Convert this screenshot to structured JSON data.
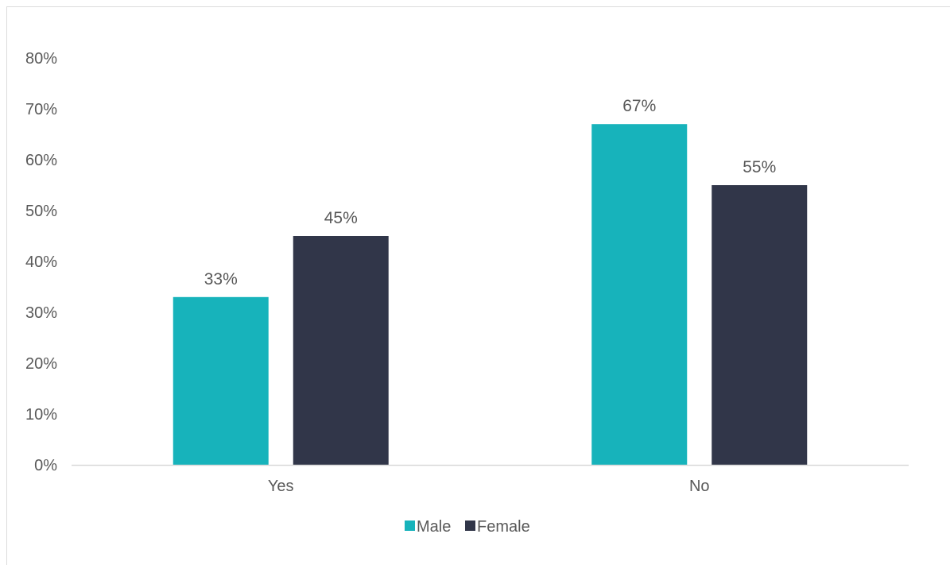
{
  "chart_data": {
    "type": "bar",
    "categories": [
      "Yes",
      "No"
    ],
    "series": [
      {
        "name": "Male",
        "values": [
          33,
          67
        ],
        "labels": [
          "33%",
          "67%"
        ],
        "color": "#17b3bb"
      },
      {
        "name": "Female",
        "values": [
          45,
          55
        ],
        "labels": [
          "45%",
          "55%"
        ],
        "color": "#313649"
      }
    ],
    "ylim": [
      0,
      80
    ],
    "yticks": [
      "0%",
      "10%",
      "20%",
      "30%",
      "40%",
      "50%",
      "60%",
      "70%",
      "80%"
    ],
    "grid": false,
    "legend": "bottom",
    "axis_color": "#d9d9d9",
    "text_color": "#595959"
  }
}
